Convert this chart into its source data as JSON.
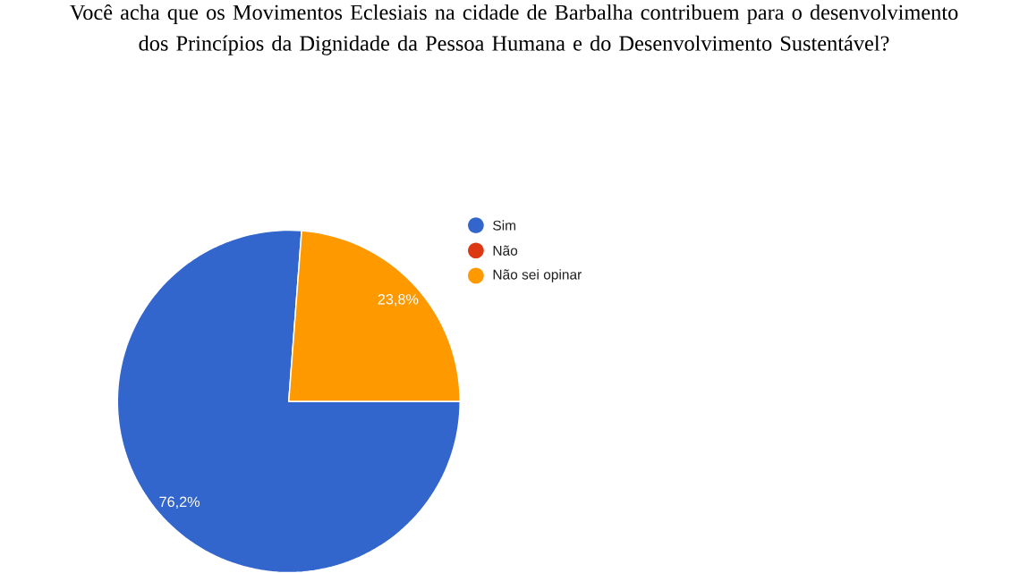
{
  "chart_data": {
    "type": "pie",
    "title": "Você acha que os Movimentos Eclesiais na cidade de Barbalha contribuem para o desenvolvimento dos Princípios da Dignidade da Pessoa Humana e do Desenvolvimento Sustentável?",
    "categories": [
      "Sim",
      "Não",
      "Não sei opinar"
    ],
    "values": [
      76.2,
      0,
      23.8
    ],
    "colors": [
      "#3366cc",
      "#dc3912",
      "#ff9900"
    ],
    "value_labels": [
      "76,2%",
      null,
      "23,8%"
    ],
    "legend": "right"
  }
}
